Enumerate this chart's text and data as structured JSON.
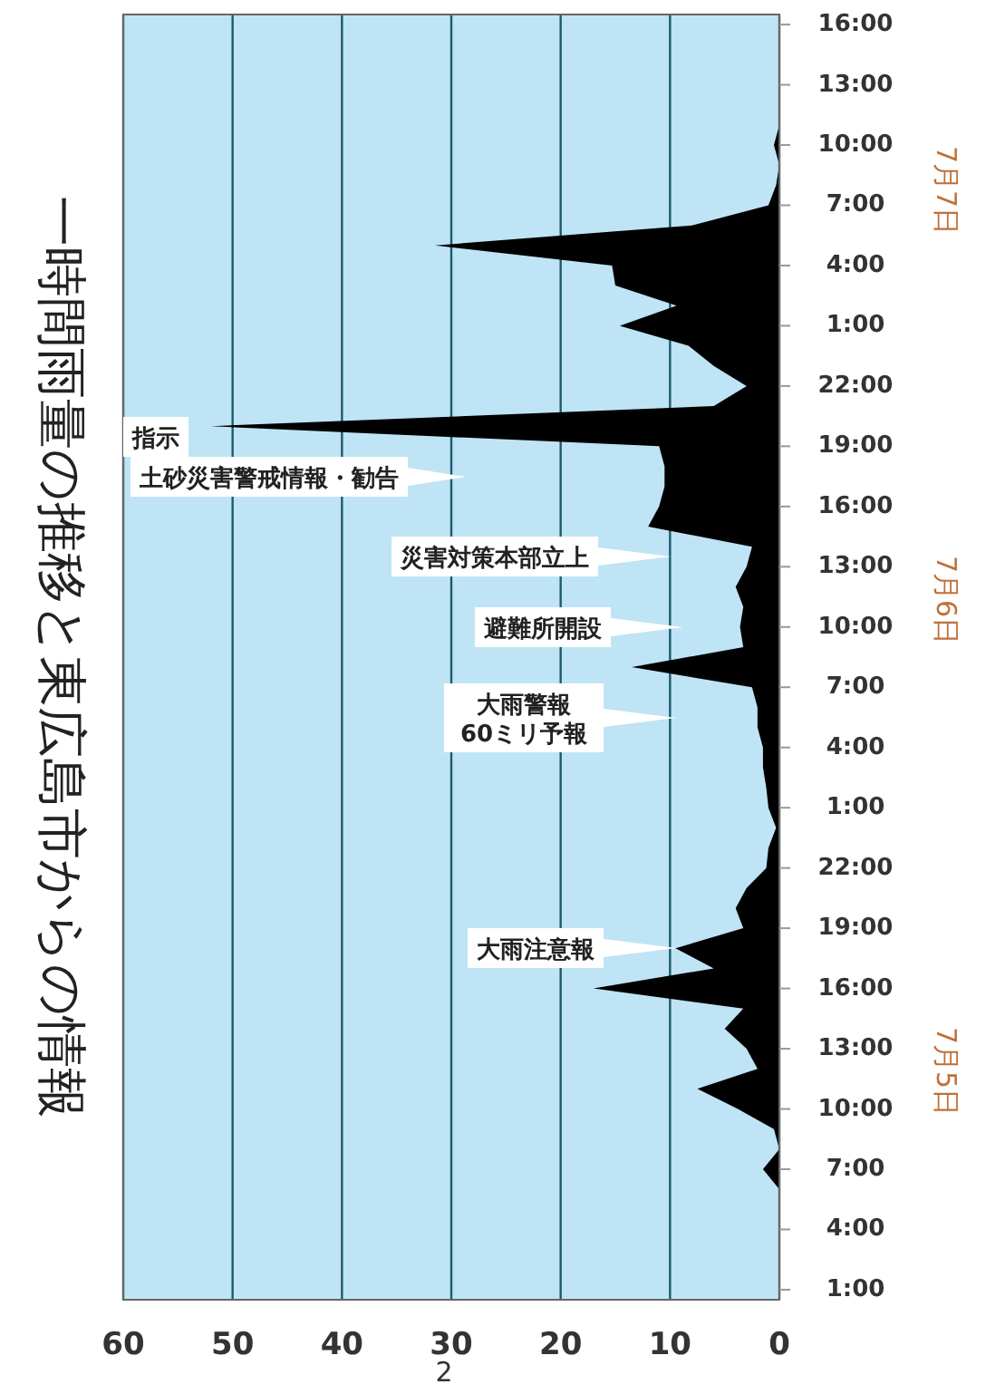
{
  "chart_data": {
    "type": "area",
    "orientation": "horizontal",
    "title": "一時間雨量の推移と東広島市からの情報",
    "x": [
      "--07-05T01:00",
      "--07-05T02:00",
      "--07-05T03:00",
      "--07-05T04:00",
      "--07-05T05:00",
      "--07-05T06:00",
      "--07-05T07:00",
      "--07-05T08:00",
      "--07-05T09:00",
      "--07-05T10:00",
      "--07-05T11:00",
      "--07-05T12:00",
      "--07-05T13:00",
      "--07-05T14:00",
      "--07-05T15:00",
      "--07-05T16:00",
      "--07-05T17:00",
      "--07-05T18:00",
      "--07-05T19:00",
      "--07-05T20:00",
      "--07-05T21:00",
      "--07-05T22:00",
      "--07-05T23:00",
      "--07-06T00:00",
      "--07-06T01:00",
      "--07-06T02:00",
      "--07-06T03:00",
      "--07-06T04:00",
      "--07-06T05:00",
      "--07-06T06:00",
      "--07-06T07:00",
      "--07-06T08:00",
      "--07-06T09:00",
      "--07-06T10:00",
      "--07-06T11:00",
      "--07-06T12:00",
      "--07-06T13:00",
      "--07-06T14:00",
      "--07-06T15:00",
      "--07-06T16:00",
      "--07-06T17:00",
      "--07-06T18:00",
      "--07-06T19:00",
      "--07-06T20:00",
      "--07-06T21:00",
      "--07-06T22:00",
      "--07-06T23:00",
      "--07-07T00:00",
      "--07-07T01:00",
      "--07-07T02:00",
      "--07-07T03:00",
      "--07-07T04:00",
      "--07-07T05:00",
      "--07-07T06:00",
      "--07-07T07:00",
      "--07-07T08:00",
      "--07-07T09:00",
      "--07-07T10:00",
      "--07-07T11:00",
      "--07-07T12:00",
      "--07-07T13:00",
      "--07-07T14:00",
      "--07-07T15:00",
      "--07-07T16:00"
    ],
    "series": [
      {
        "color": "#000000",
        "values": [
          0,
          0,
          0,
          0,
          0,
          0,
          1.5,
          0,
          0.5,
          3.8,
          7.5,
          2,
          3,
          5,
          3.3,
          17,
          6,
          9.5,
          3.3,
          4,
          3,
          1.2,
          1,
          0.3,
          1,
          1.2,
          1.5,
          1.5,
          2,
          2,
          2.5,
          13.5,
          3.3,
          3.6,
          3.3,
          4,
          3,
          2.5,
          12,
          11,
          10.5,
          10.5,
          11,
          52,
          6,
          3,
          6,
          8.3,
          14.6,
          9.4,
          15,
          15.3,
          31.5,
          8,
          1,
          0.3,
          0,
          0.5,
          0,
          0,
          0,
          0,
          0,
          0
        ]
      }
    ],
    "ylim": [
      "--07-05T00:30",
      "--07-07T16:30"
    ],
    "yticks": [
      {
        "value": "--07-05T01:00",
        "label": "1:00"
      },
      {
        "value": "--07-05T04:00",
        "label": "4:00"
      },
      {
        "value": "--07-05T07:00",
        "label": "7:00"
      },
      {
        "value": "--07-05T10:00",
        "label": "10:00"
      },
      {
        "value": "--07-05T13:00",
        "label": "13:00"
      },
      {
        "value": "--07-05T16:00",
        "label": "16:00"
      },
      {
        "value": "--07-05T19:00",
        "label": "19:00"
      },
      {
        "value": "--07-05T22:00",
        "label": "22:00"
      },
      {
        "value": "--07-06T01:00",
        "label": "1:00"
      },
      {
        "value": "--07-06T04:00",
        "label": "4:00"
      },
      {
        "value": "--07-06T07:00",
        "label": "7:00"
      },
      {
        "value": "--07-06T10:00",
        "label": "10:00"
      },
      {
        "value": "--07-06T13:00",
        "label": "13:00"
      },
      {
        "value": "--07-06T16:00",
        "label": "16:00"
      },
      {
        "value": "--07-06T19:00",
        "label": "19:00"
      },
      {
        "value": "--07-06T22:00",
        "label": "22:00"
      },
      {
        "value": "--07-07T01:00",
        "label": "1:00"
      },
      {
        "value": "--07-07T04:00",
        "label": "4:00"
      },
      {
        "value": "--07-07T07:00",
        "label": "7:00"
      },
      {
        "value": "--07-07T10:00",
        "label": "10:00"
      },
      {
        "value": "--07-07T13:00",
        "label": "13:00"
      },
      {
        "value": "--07-07T16:00",
        "label": "16:00"
      }
    ],
    "xlim": [
      60,
      0
    ],
    "xticks": [
      60,
      50,
      40,
      30,
      20,
      10,
      0
    ],
    "grid": "x",
    "annotations": [
      "7月5日",
      "7月6日",
      "7月7日",
      "大雨注意報",
      "大雨警報\n60ミリ予報",
      "避難所開設",
      "災害対策本部立上",
      "土砂災害警戒情報・勧告",
      "指示",
      "2"
    ]
  }
}
